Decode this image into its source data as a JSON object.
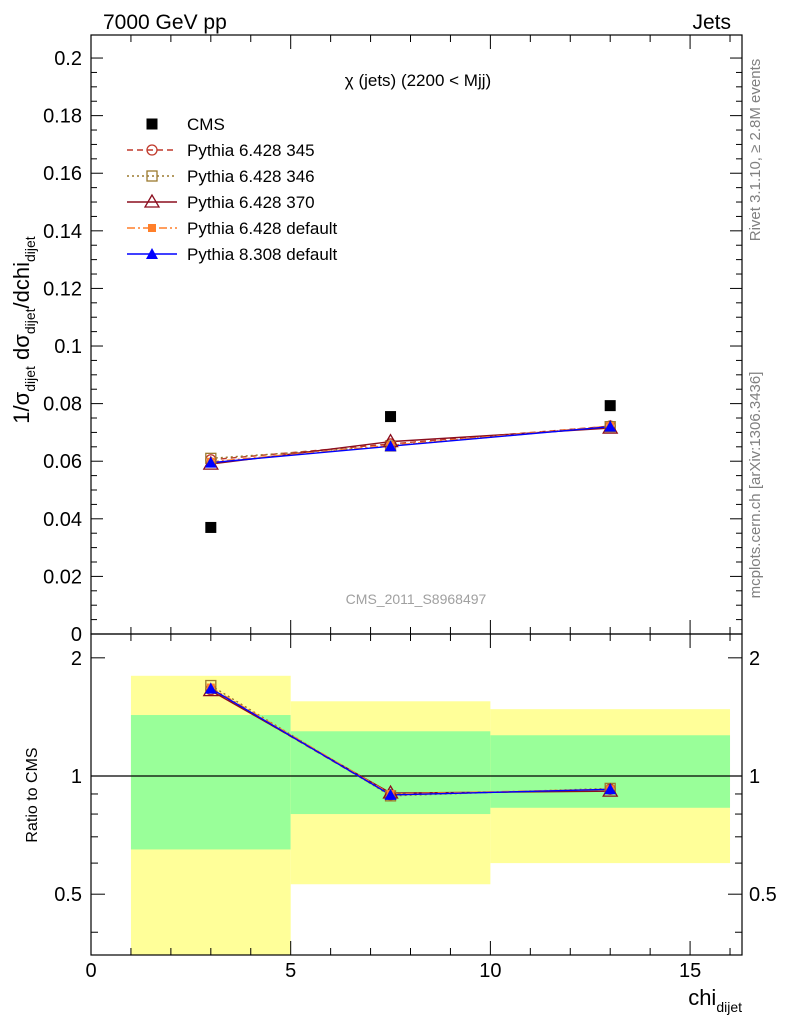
{
  "header": {
    "left": "7000 GeV pp",
    "right": "Jets"
  },
  "side_labels": {
    "rivet": "Rivet 3.1.10, ≥ 2.8M events",
    "mcplots": "mcplots.cern.ch [arXiv:1306.3436]"
  },
  "colors": {
    "cms": "#000000",
    "py6_345": "#c0392b",
    "py6_346": "#9c7a2e",
    "py6_370": "#8b0e1f",
    "py6_default": "#ff7f2a",
    "py8_default": "#0000ff",
    "band_inner": "#99ff99",
    "band_outer": "#ffff99"
  },
  "chart_data": [
    {
      "type": "scatter",
      "title": "χ (jets) (2200 < Mjj)",
      "watermark": "CMS_2011_S8968497",
      "ylabel": "1/σ_dijet dσ_dijet/dchi_dijet",
      "xlim": [
        0,
        16.3
      ],
      "ylim": [
        0,
        0.208
      ],
      "yticks": [
        "0",
        "0.02",
        "0.04",
        "0.06",
        "0.08",
        "0.1",
        "0.12",
        "0.14",
        "0.16",
        "0.18",
        "0.2"
      ],
      "x": [
        3,
        7.5,
        13
      ],
      "series": [
        {
          "name": "CMS",
          "key": "cms",
          "marker": "square-filled",
          "values": [
            0.037,
            0.0755,
            0.0793
          ]
        },
        {
          "name": "Pythia 6.428 345",
          "key": "py6_345",
          "marker": "circle-open",
          "dash": "dashed",
          "values": [
            0.0605,
            0.066,
            0.0722
          ]
        },
        {
          "name": "Pythia 6.428 346",
          "key": "py6_346",
          "marker": "square-open",
          "dash": "dotted",
          "values": [
            0.061,
            0.0653,
            0.072
          ]
        },
        {
          "name": "Pythia 6.428 370",
          "key": "py6_370",
          "marker": "triangle-open",
          "dash": "solid",
          "values": [
            0.059,
            0.0668,
            0.0715
          ]
        },
        {
          "name": "Pythia 6.428 default",
          "key": "py6_default",
          "marker": "square-filled-small",
          "dash": "dashdot",
          "values": [
            0.0598,
            0.0655,
            0.0722
          ]
        },
        {
          "name": "Pythia 8.308 default",
          "key": "py8_default",
          "marker": "triangle-filled",
          "dash": "solid",
          "values": [
            0.0595,
            0.0652,
            0.072
          ]
        }
      ]
    },
    {
      "type": "line",
      "ylabel": "Ratio to CMS",
      "xlabel": "chi_dijet",
      "xlim": [
        0,
        16.3
      ],
      "ylim": [
        0.35,
        2.3
      ],
      "xticks": [
        "0",
        "5",
        "10",
        "15"
      ],
      "yticks": [
        "0.5",
        "1",
        "2"
      ],
      "bands": [
        {
          "x": [
            1,
            5
          ],
          "inner": [
            0.65,
            1.43
          ],
          "outer": [
            0.35,
            1.8
          ]
        },
        {
          "x": [
            5,
            10
          ],
          "inner": [
            0.8,
            1.3
          ],
          "outer": [
            0.53,
            1.55
          ]
        },
        {
          "x": [
            10,
            16
          ],
          "inner": [
            0.83,
            1.27
          ],
          "outer": [
            0.6,
            1.48
          ]
        }
      ],
      "x": [
        3,
        7.5,
        13
      ],
      "series": [
        {
          "name": "Pythia 6.428 345",
          "key": "py6_345",
          "values": [
            1.66,
            0.895,
            0.925
          ]
        },
        {
          "name": "Pythia 6.428 346",
          "key": "py6_346",
          "values": [
            1.7,
            0.89,
            0.93
          ]
        },
        {
          "name": "Pythia 6.428 370",
          "key": "py6_370",
          "values": [
            1.65,
            0.905,
            0.915
          ]
        },
        {
          "name": "Pythia 6.428 default",
          "key": "py6_default",
          "values": [
            1.68,
            0.9,
            0.925
          ]
        },
        {
          "name": "Pythia 8.308 default",
          "key": "py8_default",
          "values": [
            1.67,
            0.895,
            0.925
          ]
        }
      ]
    }
  ]
}
